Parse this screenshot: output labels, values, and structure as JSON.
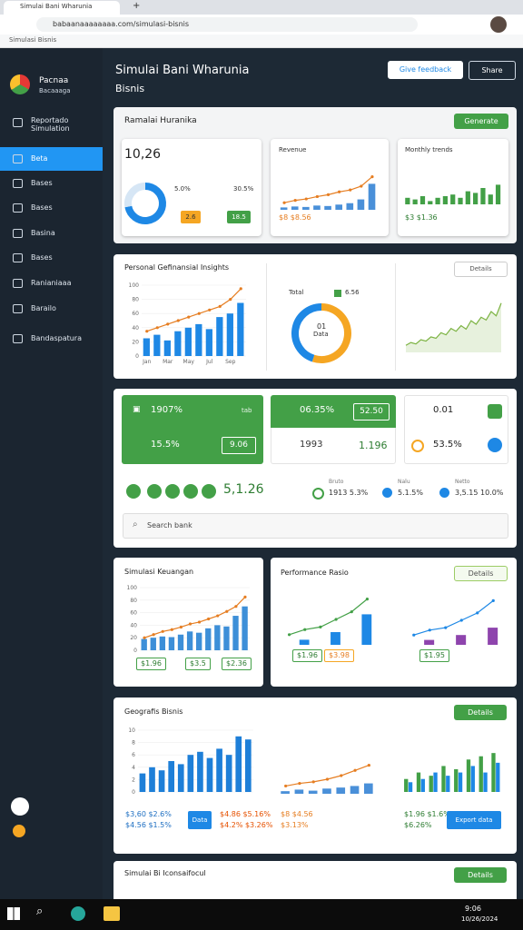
{
  "browser": {
    "tab": "Simulai Bani Wharunia",
    "url": "babaanaaaaaaaa.com/simulasi-bisnis",
    "bookmark": "Simulasi Bisnis"
  },
  "sidebar": {
    "brand": "Pacnaa",
    "brand_sub": "Bacaaaga",
    "items": [
      "Reportado Simulation",
      "Beta",
      "Bases",
      "Bases",
      "Basina",
      "Bases",
      "Ranianiaaa",
      "Barailo",
      "Bandaspatura"
    ]
  },
  "header": {
    "title": "Simulai Bani Wharunia",
    "subtitle": "Bisnis",
    "buttons": [
      "Give feedback",
      "Share"
    ]
  },
  "panels": [
    {
      "title": "Ramalai Huranika",
      "button": "Generate",
      "kpi": {
        "value": "10,26",
        "labels": [
          "5.0%",
          "30.5%"
        ],
        "chips": [
          "2.6",
          "18.5"
        ]
      },
      "cards": [
        {
          "title": "Revenue",
          "footer": "$8 $8.56"
        },
        {
          "title": "Monthly trends",
          "footer": "$3 $1.36"
        }
      ],
      "charts": [
        {
          "type": "donut",
          "values": [
            72,
            28
          ],
          "colors": [
            "#1e88e5",
            "#d6e6f5"
          ]
        },
        {
          "type": "combo",
          "ylim": [
            0,
            10
          ],
          "series": [
            {
              "type": "bar",
              "color": "#4a90d9",
              "values": [
                0.5,
                0.7,
                0.6,
                0.9,
                0.8,
                1.1,
                1.4,
                2.2,
                5.5
              ]
            },
            {
              "type": "line",
              "color": "#e67e22",
              "values": [
                1.5,
                2,
                2.3,
                2.8,
                3.2,
                3.8,
                4.2,
                5,
                7
              ]
            }
          ]
        },
        {
          "type": "combo",
          "ylim": [
            0,
            10
          ],
          "series": [
            {
              "type": "bar",
              "color": "#43a047",
              "values": [
                2,
                1.5,
                2.5,
                1,
                2,
                2.5,
                3,
                2,
                4,
                3.5,
                5,
                3,
                6
              ]
            }
          ]
        }
      ]
    },
    {
      "title": "Personal Gefinansial Insights",
      "button": "Details",
      "legend": [
        "Total",
        "6.56"
      ],
      "center": [
        "01",
        "Data"
      ],
      "charts": [
        {
          "type": "combo",
          "ylim": [
            0,
            100
          ],
          "yticks": [
            0,
            20,
            40,
            60,
            80,
            100
          ],
          "categories": [
            "Jan",
            null,
            "Mar",
            null,
            "May",
            null,
            "Jul",
            null,
            "Sep",
            null
          ],
          "series": [
            {
              "type": "bar",
              "color": "#1e88e5",
              "values": [
                25,
                30,
                22,
                35,
                40,
                45,
                38,
                55,
                60,
                75
              ]
            },
            {
              "type": "line",
              "color": "#e67e22",
              "values": [
                35,
                40,
                45,
                50,
                55,
                60,
                65,
                70,
                80,
                95
              ]
            }
          ]
        },
        {
          "type": "donut",
          "values": [
            55,
            45
          ],
          "colors": [
            "#f5a623",
            "#1e88e5"
          ]
        },
        {
          "type": "area",
          "ylim": [
            0,
            80
          ],
          "color": "#7cb342",
          "values": [
            10,
            14,
            12,
            18,
            16,
            22,
            20,
            28,
            25,
            34,
            30,
            38,
            33,
            45,
            40,
            50,
            46,
            58,
            52,
            70
          ]
        }
      ]
    },
    {
      "tiles": [
        "1907%",
        "tab",
        "15.5%",
        "9.06",
        "06.35%",
        "52.50",
        "1993",
        "1.196",
        "0.01",
        "53.5%"
      ],
      "total": "5,1.26",
      "stats": [
        {
          "label": "Bruto",
          "value": "1913 5.3%"
        },
        {
          "label": "Nalu",
          "value": "5.1.5%"
        },
        {
          "label": "Netto",
          "value": "3,5.15 10.0%"
        }
      ],
      "search": "Search bank"
    },
    {
      "left": {
        "title": "Simulasi Keuangan",
        "chips": [
          "$1.96",
          "$3.5",
          "$2.36"
        ]
      },
      "right": {
        "title": "Performance Rasio",
        "button": "Details",
        "chips": [
          "$1.96",
          "$3.98",
          "$1.95"
        ]
      },
      "charts": [
        {
          "type": "combo",
          "ylim": [
            0,
            100
          ],
          "yticks": [
            0,
            20,
            40,
            60,
            80,
            100
          ],
          "series": [
            {
              "type": "bar",
              "color": "#3d8fd8",
              "values": [
                18,
                20,
                22,
                21,
                25,
                30,
                28,
                35,
                40,
                38,
                55,
                70
              ]
            },
            {
              "type": "line",
              "color": "#e67e22",
              "values": [
                20,
                25,
                30,
                33,
                37,
                42,
                45,
                50,
                55,
                62,
                70,
                85
              ]
            }
          ]
        },
        {
          "type": "combo",
          "ylim": [
            0,
            10
          ],
          "series": [
            {
              "type": "bar",
              "color": "#1e88e5",
              "values": [
                null,
                1,
                null,
                2.5,
                null,
                6
              ]
            },
            {
              "type": "line",
              "color": "#43a047",
              "values": [
                2,
                3,
                3.5,
                5,
                6.5,
                9
              ]
            }
          ]
        },
        {
          "type": "combo",
          "ylim": [
            0,
            10
          ],
          "series": [
            {
              "type": "bar",
              "color": "#8e44ad",
              "values": [
                null,
                1,
                null,
                2,
                null,
                3.5
              ]
            },
            {
              "type": "line",
              "color": "#1e88e5",
              "values": [
                2,
                3,
                3.5,
                5,
                6.5,
                9
              ]
            }
          ]
        }
      ]
    },
    {
      "title": "Geografis Bisnis",
      "button": "Details",
      "texts": [
        "$3,60 $2.6%",
        "$4.56 $1.5%",
        "Data",
        "$4.86 $5.16%",
        "$4.2% $3.26%",
        "$8 $4.56",
        "$3.13%",
        "$1.96 $1.6%",
        "$6.26%",
        "Export data"
      ],
      "charts": [
        {
          "type": "combo",
          "ylim": [
            0,
            10
          ],
          "yticks": [
            0,
            2,
            4,
            6,
            8,
            10
          ],
          "series": [
            {
              "type": "bar",
              "color": "#1e7fd8",
              "values": [
                3,
                4,
                3.5,
                5,
                4.5,
                6,
                6.5,
                5.5,
                7,
                6,
                9,
                8.5
              ]
            }
          ]
        },
        {
          "type": "combo",
          "ylim": [
            0,
            7
          ],
          "series": [
            {
              "type": "bar",
              "color": "#4a90d9",
              "values": [
                0.5,
                0.8,
                0.6,
                1,
                1.2,
                1.5,
                2
              ]
            },
            {
              "type": "line",
              "color": "#e67e22",
              "values": [
                1.5,
                2,
                2.3,
                2.8,
                3.5,
                4.5,
                5.5
              ]
            }
          ]
        },
        {
          "type": "combo",
          "ylim": [
            0,
            7
          ],
          "series": [
            {
              "type": "bar",
              "color": "#43a047",
              "values": [
                2,
                3,
                2.5,
                4,
                3.5,
                5,
                5.5,
                6
              ]
            },
            {
              "type": "bar",
              "color": "#1e88e5",
              "values": [
                1.5,
                2,
                3,
                2.5,
                3,
                4,
                3,
                4.5
              ]
            }
          ]
        }
      ]
    },
    {
      "title": "Simulai Bi Iconsaifocul",
      "button": "Details"
    }
  ],
  "taskbar": {
    "time": "9:06",
    "date": "10/26/2024"
  }
}
